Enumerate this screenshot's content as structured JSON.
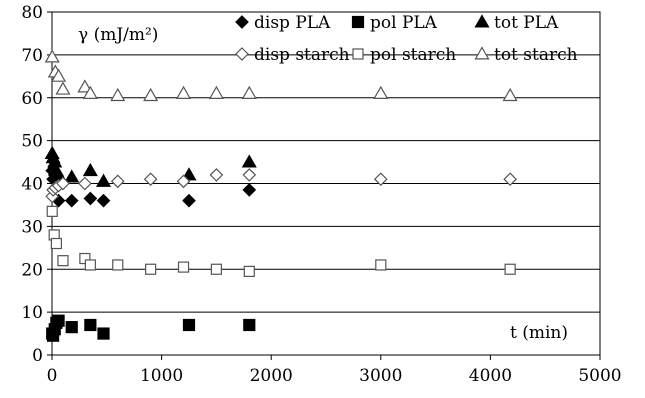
{
  "chart_data": {
    "type": "scatter",
    "title": "",
    "xlabel": "t (min)",
    "ylabel": "γ (mJ/m²)",
    "xlim": [
      0,
      5000
    ],
    "ylim": [
      0,
      80
    ],
    "xticks": [
      0,
      1000,
      2000,
      3000,
      4000,
      5000
    ],
    "yticks": [
      0,
      10,
      20,
      30,
      40,
      50,
      60,
      70,
      80
    ],
    "grid": "horizontal",
    "legend_placement": "top-right",
    "series": [
      {
        "name": "disp PLA",
        "marker": "diamond-filled",
        "points": [
          [
            2,
            43
          ],
          [
            10,
            41
          ],
          [
            25,
            42
          ],
          [
            40,
            41
          ],
          [
            60,
            36
          ],
          [
            180,
            36
          ],
          [
            350,
            36.5
          ],
          [
            470,
            36
          ],
          [
            1250,
            36
          ],
          [
            1800,
            38.5
          ]
        ]
      },
      {
        "name": "pol PLA",
        "marker": "square-filled",
        "points": [
          [
            2,
            5
          ],
          [
            10,
            4.5
          ],
          [
            25,
            6
          ],
          [
            40,
            7.5
          ],
          [
            60,
            8
          ],
          [
            180,
            6.5
          ],
          [
            350,
            7
          ],
          [
            470,
            5
          ],
          [
            1250,
            7
          ],
          [
            1800,
            7
          ]
        ]
      },
      {
        "name": "tot PLA",
        "marker": "triangle-filled",
        "points": [
          [
            2,
            47
          ],
          [
            10,
            46
          ],
          [
            25,
            45
          ],
          [
            40,
            43
          ],
          [
            60,
            42
          ],
          [
            180,
            41.5
          ],
          [
            350,
            43
          ],
          [
            470,
            40.5
          ],
          [
            1250,
            42
          ],
          [
            1800,
            45
          ]
        ]
      },
      {
        "name": "disp starch",
        "marker": "diamond-open",
        "points": [
          [
            2,
            37
          ],
          [
            10,
            38.5
          ],
          [
            30,
            39
          ],
          [
            60,
            39.5
          ],
          [
            100,
            40
          ],
          [
            300,
            40
          ],
          [
            600,
            40.5
          ],
          [
            900,
            41
          ],
          [
            1200,
            40.5
          ],
          [
            1500,
            42
          ],
          [
            1800,
            42
          ],
          [
            3000,
            41
          ],
          [
            4180,
            41
          ]
        ]
      },
      {
        "name": "pol starch",
        "marker": "square-open",
        "points": [
          [
            2,
            33.5
          ],
          [
            20,
            28
          ],
          [
            40,
            26
          ],
          [
            100,
            22
          ],
          [
            300,
            22.5
          ],
          [
            350,
            21
          ],
          [
            600,
            21
          ],
          [
            900,
            20
          ],
          [
            1200,
            20.5
          ],
          [
            1500,
            20
          ],
          [
            1800,
            19.5
          ],
          [
            3000,
            21
          ],
          [
            4180,
            20
          ]
        ]
      },
      {
        "name": "tot starch",
        "marker": "triangle-open",
        "points": [
          [
            2,
            69.5
          ],
          [
            30,
            66
          ],
          [
            60,
            65
          ],
          [
            100,
            62
          ],
          [
            300,
            62.5
          ],
          [
            350,
            61
          ],
          [
            600,
            60.5
          ],
          [
            900,
            60.5
          ],
          [
            1200,
            61
          ],
          [
            1500,
            61
          ],
          [
            1800,
            61
          ],
          [
            3000,
            61
          ],
          [
            4180,
            60.5
          ]
        ]
      }
    ]
  }
}
